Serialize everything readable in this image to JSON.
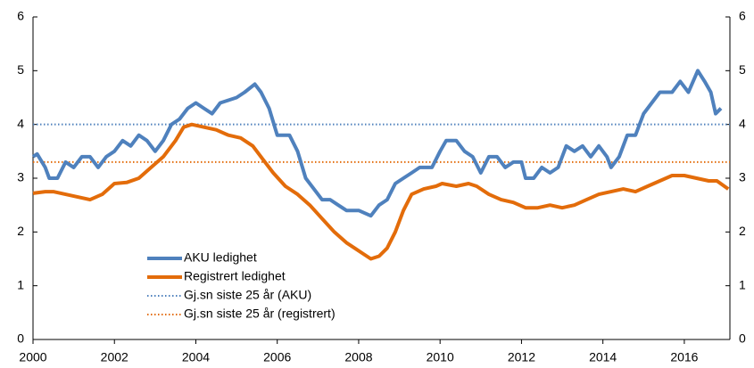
{
  "chart_data": {
    "type": "line",
    "xlim": [
      2000,
      2017.12
    ],
    "xticks": [
      2000,
      2002,
      2004,
      2006,
      2008,
      2010,
      2012,
      2014,
      2016
    ],
    "ylim": [
      0,
      6
    ],
    "yticks": [
      0,
      1,
      2,
      3,
      4,
      5,
      6
    ],
    "y2lim": [
      0,
      6
    ],
    "y2ticks": [
      0,
      1,
      2,
      3,
      4,
      5,
      6
    ],
    "series": [
      {
        "name": "AKU ledighet",
        "color": "#4f81bd",
        "x": [
          2000.0,
          2000.1,
          2000.3,
          2000.4,
          2000.6,
          2000.8,
          2001.0,
          2001.2,
          2001.4,
          2001.6,
          2001.8,
          2002.0,
          2002.2,
          2002.4,
          2002.6,
          2002.8,
          2003.0,
          2003.2,
          2003.4,
          2003.6,
          2003.8,
          2004.0,
          2004.2,
          2004.4,
          2004.6,
          2004.8,
          2005.0,
          2005.2,
          2005.45,
          2005.6,
          2005.8,
          2006.0,
          2006.3,
          2006.5,
          2006.7,
          2006.9,
          2007.1,
          2007.3,
          2007.5,
          2007.7,
          2008.0,
          2008.3,
          2008.5,
          2008.7,
          2008.9,
          2009.1,
          2009.3,
          2009.5,
          2009.8,
          2010.0,
          2010.15,
          2010.4,
          2010.6,
          2010.8,
          2011.0,
          2011.2,
          2011.4,
          2011.6,
          2011.8,
          2012.0,
          2012.1,
          2012.3,
          2012.5,
          2012.7,
          2012.9,
          2013.1,
          2013.3,
          2013.5,
          2013.7,
          2013.9,
          2014.1,
          2014.2,
          2014.4,
          2014.6,
          2014.8,
          2015.0,
          2015.2,
          2015.4,
          2015.7,
          2015.9,
          2016.1,
          2016.33,
          2016.5,
          2016.65,
          2016.77,
          2016.9
        ],
        "values": [
          3.4,
          3.45,
          3.2,
          3.0,
          3.0,
          3.3,
          3.2,
          3.4,
          3.4,
          3.2,
          3.4,
          3.5,
          3.7,
          3.6,
          3.8,
          3.7,
          3.5,
          3.7,
          4.0,
          4.1,
          4.3,
          4.4,
          4.3,
          4.2,
          4.4,
          4.45,
          4.5,
          4.6,
          4.75,
          4.6,
          4.3,
          3.8,
          3.8,
          3.5,
          3.0,
          2.8,
          2.6,
          2.6,
          2.5,
          2.4,
          2.4,
          2.3,
          2.5,
          2.6,
          2.9,
          3.0,
          3.1,
          3.2,
          3.2,
          3.5,
          3.7,
          3.7,
          3.5,
          3.4,
          3.1,
          3.4,
          3.4,
          3.2,
          3.3,
          3.3,
          3.0,
          3.0,
          3.2,
          3.1,
          3.2,
          3.6,
          3.5,
          3.6,
          3.4,
          3.6,
          3.4,
          3.2,
          3.4,
          3.8,
          3.8,
          4.2,
          4.4,
          4.6,
          4.6,
          4.8,
          4.6,
          5.0,
          4.8,
          4.6,
          4.2,
          4.3
        ]
      },
      {
        "name": "Registrert ledighet",
        "color": "#e36c0a",
        "x": [
          2000.0,
          2000.3,
          2000.5,
          2000.8,
          2001.1,
          2001.4,
          2001.7,
          2002.0,
          2002.3,
          2002.6,
          2002.9,
          2003.2,
          2003.5,
          2003.7,
          2003.9,
          2004.2,
          2004.5,
          2004.8,
          2005.1,
          2005.4,
          2005.65,
          2005.9,
          2006.2,
          2006.5,
          2006.8,
          2007.1,
          2007.4,
          2007.7,
          2007.9,
          2008.1,
          2008.3,
          2008.5,
          2008.7,
          2008.9,
          2009.1,
          2009.3,
          2009.6,
          2009.9,
          2010.05,
          2010.4,
          2010.7,
          2010.9,
          2011.2,
          2011.5,
          2011.8,
          2012.1,
          2012.4,
          2012.7,
          2013.0,
          2013.3,
          2013.6,
          2013.9,
          2014.2,
          2014.5,
          2014.8,
          2015.1,
          2015.4,
          2015.7,
          2016.0,
          2016.3,
          2016.6,
          2016.8,
          2017.08
        ],
        "values": [
          2.72,
          2.75,
          2.75,
          2.7,
          2.65,
          2.6,
          2.7,
          2.9,
          2.92,
          3.0,
          3.2,
          3.4,
          3.7,
          3.95,
          4.0,
          3.95,
          3.9,
          3.8,
          3.75,
          3.6,
          3.35,
          3.1,
          2.85,
          2.7,
          2.5,
          2.25,
          2.0,
          1.8,
          1.7,
          1.6,
          1.5,
          1.55,
          1.7,
          2.0,
          2.4,
          2.7,
          2.8,
          2.85,
          2.9,
          2.85,
          2.9,
          2.85,
          2.7,
          2.6,
          2.55,
          2.45,
          2.45,
          2.5,
          2.45,
          2.5,
          2.6,
          2.7,
          2.75,
          2.8,
          2.75,
          2.85,
          2.95,
          3.05,
          3.05,
          3.0,
          2.95,
          2.95,
          2.8
        ]
      }
    ],
    "reference_lines": [
      {
        "name": "Gj.sn siste 25 år (AKU)",
        "color": "#4f81bd",
        "value": 4.0
      },
      {
        "name": "Gj.sn siste 25 år (registrert)",
        "color": "#e36c0a",
        "value": 3.3
      }
    ]
  }
}
